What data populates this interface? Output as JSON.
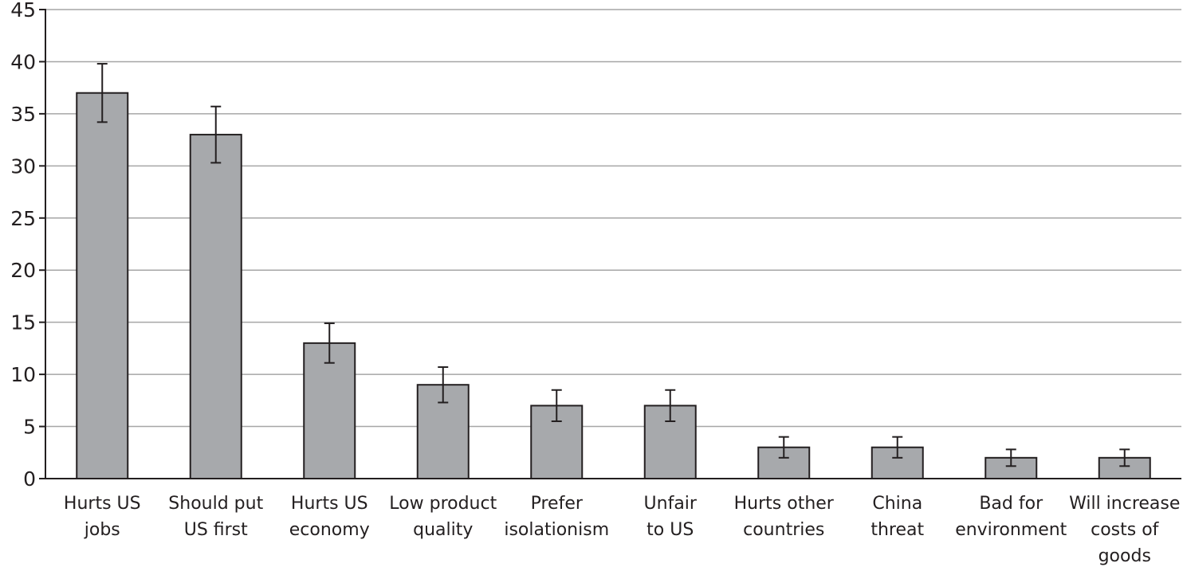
{
  "chart_data": {
    "type": "bar",
    "categories": [
      [
        "Hurts US",
        "jobs"
      ],
      [
        "Should put",
        "US first"
      ],
      [
        "Hurts US",
        "economy"
      ],
      [
        "Low product",
        "quality"
      ],
      [
        "Prefer",
        "isolationism"
      ],
      [
        "Unfair",
        "to US"
      ],
      [
        "Hurts other",
        "countries"
      ],
      [
        "China",
        "threat"
      ],
      [
        "Bad for",
        "environment"
      ],
      [
        "Will increase",
        "costs of",
        "goods"
      ]
    ],
    "values": [
      37,
      33,
      13,
      9,
      7,
      7,
      3,
      3,
      2,
      2
    ],
    "error_low": [
      34.2,
      30.3,
      11.1,
      7.3,
      5.5,
      5.5,
      2.0,
      2.0,
      1.2,
      1.2
    ],
    "error_high": [
      39.8,
      35.7,
      14.9,
      10.7,
      8.5,
      8.5,
      4.0,
      4.0,
      2.8,
      2.8
    ],
    "title": "",
    "xlabel": "",
    "ylabel": "",
    "ylim": [
      0,
      45
    ],
    "yticks": [
      0,
      5,
      10,
      15,
      20,
      25,
      30,
      35,
      40,
      45
    ],
    "grid": true,
    "bar_color": "#a7a9ac",
    "grid_color": "#a6a6a6",
    "axis_color": "#231f20"
  }
}
